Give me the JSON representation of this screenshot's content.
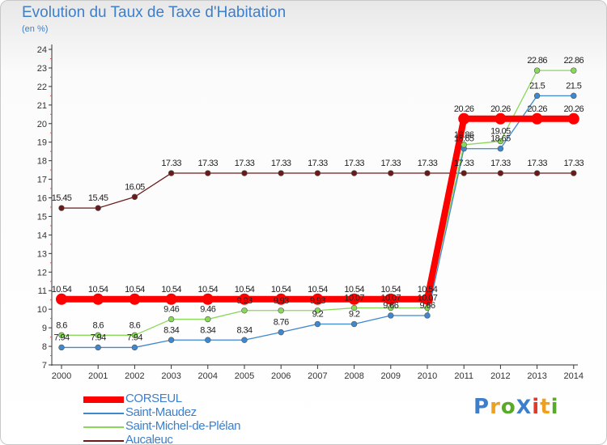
{
  "title": "Evolution du Taux de Taxe d'Habitation",
  "unit": "(en %)",
  "brand": {
    "text": "ProXiti",
    "colors": [
      "#3d7fcc",
      "#f0a020",
      "#5aaa2a",
      "#3d7fcc",
      "#e03a2a",
      "#f0a020",
      "#5aaa2a"
    ]
  },
  "chart_data": {
    "type": "line",
    "title": "Evolution du Taux de Taxe d'Habitation",
    "ylabel": "(en %)",
    "xlabel": "",
    "ylim": [
      7,
      24
    ],
    "yticks": [
      "7",
      "8",
      "9",
      "10",
      "11",
      "12",
      "13",
      "14",
      "15",
      "16",
      "17",
      "18",
      "19",
      "20",
      "21",
      "22",
      "23",
      "24"
    ],
    "categories": [
      "2000",
      "2001",
      "2002",
      "2003",
      "2004",
      "2005",
      "2006",
      "2007",
      "2008",
      "2009",
      "2010",
      "2011",
      "2012",
      "2013",
      "2014"
    ],
    "grid": false,
    "series": [
      {
        "name": "Aucaleuc",
        "color": "#6b1a1a",
        "values": [
          15.45,
          15.45,
          16.05,
          17.33,
          17.33,
          17.33,
          17.33,
          17.33,
          17.33,
          17.33,
          17.33,
          17.33,
          17.33,
          17.33,
          17.33
        ],
        "labels": [
          "15.45",
          "15.45",
          "16.05",
          "17.33",
          "17.33",
          "17.33",
          "17.33",
          "17.33",
          "17.33",
          "17.33",
          "17.33",
          "17.33",
          "17.33",
          "17.33",
          "17.33"
        ]
      },
      {
        "name": "Saint-Maudez",
        "color": "#3d88cf",
        "values": [
          7.94,
          7.94,
          7.94,
          8.34,
          8.34,
          8.34,
          8.76,
          9.2,
          9.2,
          9.66,
          9.66,
          18.65,
          18.65,
          21.5,
          21.5
        ],
        "labels": [
          "7.94",
          "7.94",
          "7.94",
          "8.34",
          "8.34",
          "8.34",
          "8.76",
          "9.2",
          "9.2",
          "9.66",
          "9.66",
          "18.65",
          "18.65",
          "21.5",
          "21.5"
        ]
      },
      {
        "name": "Saint-Michel-de-Plélan",
        "color": "#8ad85a",
        "values": [
          8.6,
          8.6,
          8.6,
          9.46,
          9.46,
          9.93,
          9.93,
          9.93,
          10.07,
          10.07,
          10.07,
          18.86,
          19.05,
          22.86,
          22.86
        ],
        "labels": [
          "8.6",
          "8.6",
          "8.6",
          "9.46",
          "9.46",
          "9.93",
          "9.93",
          "9.93",
          "10.07",
          "10.07",
          "10.07",
          "18.86",
          "19.05",
          "22.86",
          "22.86"
        ]
      },
      {
        "name": "CORSEUL",
        "color": "#ff0000",
        "values": [
          10.54,
          10.54,
          10.54,
          10.54,
          10.54,
          10.54,
          10.54,
          10.54,
          10.54,
          10.54,
          10.54,
          20.26,
          20.26,
          20.26,
          20.26
        ],
        "labels": [
          "10.54",
          "10.54",
          "10.54",
          "10.54",
          "10.54",
          "10.54",
          "10.54",
          "10.54",
          "10.54",
          "10.54",
          "10.54",
          "20.26",
          "20.26",
          "20.26",
          "20.26"
        ]
      }
    ],
    "legend": {
      "position": "bottom-left",
      "entries": [
        {
          "name": "CORSEUL",
          "color": "#ff0000"
        },
        {
          "name": "Saint-Maudez",
          "color": "#3d88cf"
        },
        {
          "name": "Saint-Michel-de-Plélan",
          "color": "#8ad85a"
        },
        {
          "name": "Aucaleuc",
          "color": "#6b1a1a"
        }
      ]
    }
  }
}
